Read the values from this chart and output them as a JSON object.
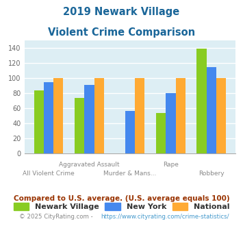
{
  "title_line1": "2019 Newark Village",
  "title_line2": "Violent Crime Comparison",
  "categories": [
    "All Violent Crime",
    "Aggravated Assault",
    "Murder & Mans...",
    "Rape",
    "Robbery"
  ],
  "newark_village": [
    84,
    74,
    0,
    54,
    139
  ],
  "new_york": [
    95,
    91,
    57,
    80,
    115
  ],
  "national": [
    100,
    100,
    100,
    100,
    100
  ],
  "newark_color": "#88cc22",
  "newyork_color": "#4488ee",
  "national_color": "#ffaa33",
  "title_color": "#1a6699",
  "bg_color": "#ddeef4",
  "grid_color": "#ffffff",
  "ylim": [
    0,
    150
  ],
  "yticks": [
    0,
    20,
    40,
    60,
    80,
    100,
    120,
    140
  ],
  "legend_labels": [
    "Newark Village",
    "New York",
    "National"
  ],
  "footnote1": "Compared to U.S. average. (U.S. average equals 100)",
  "footnote2": "© 2025 CityRating.com - https://www.cityrating.com/crime-statistics/",
  "footnote1_color": "#993300",
  "footnote2_color": "#4499cc",
  "footnote2_prefix_color": "#888888",
  "xtick_top_labels": [
    "",
    "Aggravated Assault",
    "",
    "Rape",
    ""
  ],
  "xtick_bot_labels": [
    "All Violent Crime",
    "",
    "Murder & Mans...",
    "",
    "Robbery"
  ]
}
